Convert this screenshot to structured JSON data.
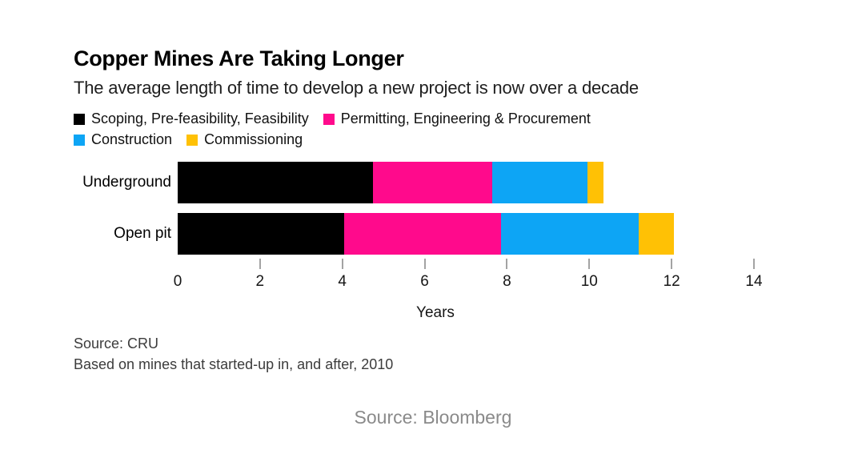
{
  "chart_data": {
    "type": "bar",
    "orientation": "horizontal",
    "stacked": true,
    "title": "Copper Mines Are Taking Longer",
    "subtitle": "The average length of time to develop a new project is now over a decade",
    "categories": [
      "Underground",
      "Open pit"
    ],
    "series": [
      {
        "name": "Scoping, Pre-feasibility, Feasibility",
        "color": "#000000",
        "values": [
          4.75,
          4.05
        ]
      },
      {
        "name": "Permitting, Engineering & Procurement",
        "color": "#ff0a8c",
        "values": [
          2.9,
          3.8
        ]
      },
      {
        "name": "Construction",
        "color": "#0da5f5",
        "values": [
          2.3,
          3.35
        ]
      },
      {
        "name": "Commissioning",
        "color": "#ffc105",
        "values": [
          0.4,
          0.85
        ]
      }
    ],
    "totals": [
      10.35,
      12.05
    ],
    "xlabel": "Years",
    "xlim": [
      0,
      14
    ],
    "x_ticks": [
      0,
      2,
      4,
      6,
      8,
      10,
      12,
      14
    ],
    "legend_position": "top",
    "grid": false,
    "unit": "years"
  },
  "footnotes": {
    "source_line": "Source: CRU",
    "basis_line": "Based on mines that started-up in, and after, 2010"
  },
  "attribution": {
    "text": "Source: Bloomberg"
  }
}
